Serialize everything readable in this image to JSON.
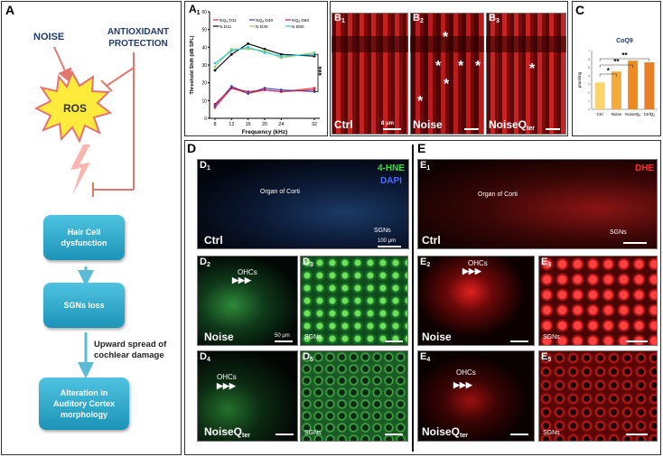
{
  "panelA": {
    "label": "A",
    "noise": "NOISE",
    "antioxidant": "ANTIOXIDANT\nPROTECTION",
    "ros": "ROS",
    "box1": "Hair Cell dysfunction",
    "box2": "SGNs loss",
    "spread": "Upward spread of cochlear damage",
    "box3": "Alteration in Auditory Cortex morphology"
  },
  "panelA1": {
    "label": "A",
    "sub": "1",
    "xlabel": "Frequency (kHz)",
    "ylabel": "Threshold Shift (dB SPL)",
    "legend": [
      "NQₐ D11",
      "NQₐ D30",
      "NQₐ D60",
      "N D11",
      "N D30",
      "N D60"
    ],
    "sig": "***",
    "colors": [
      "#e53935",
      "#3949ab",
      "#c2185b",
      "#000000",
      "#9ccc65",
      "#26c6da"
    ]
  },
  "chart_data": {
    "type": "line",
    "x": [
      8,
      12,
      16,
      20,
      24,
      32
    ],
    "xlabel": "Frequency (kHz)",
    "ylabel": "Threshold Shift (dB SPL)",
    "ylim": [
      0,
      60
    ],
    "yticks": [
      0,
      10,
      20,
      30,
      40,
      50,
      60
    ],
    "series": [
      {
        "name": "NQₐ D11",
        "values": [
          6,
          17,
          14,
          16,
          15,
          17
        ]
      },
      {
        "name": "NQₐ D30",
        "values": [
          7,
          18,
          14,
          17,
          16,
          15
        ]
      },
      {
        "name": "NQₐ D60",
        "values": [
          8,
          17,
          15,
          16,
          15,
          16
        ]
      },
      {
        "name": "N D11",
        "values": [
          27,
          36,
          42,
          39,
          36,
          35
        ]
      },
      {
        "name": "N D30",
        "values": [
          29,
          39,
          39,
          38,
          34,
          37
        ]
      },
      {
        "name": "N D60",
        "values": [
          31,
          38,
          40,
          37,
          35,
          36
        ]
      }
    ]
  },
  "panelB": {
    "label": "B",
    "b1": "B",
    "b2": "B",
    "b3": "B",
    "s1": "1",
    "s2": "2",
    "s3": "3",
    "ctrl": "Ctrl",
    "noise": "Noise",
    "noiseq": "NoiseQ",
    "ter": "ter",
    "scale": "8 μm",
    "star": "*"
  },
  "panelC": {
    "label": "C",
    "title": "CoQ9",
    "ylabel": "pmol/mg",
    "categories": [
      "Ctrl",
      "Noise",
      "NoiseQₐ",
      "CtrlQₐ"
    ],
    "values": [
      3.2,
      4.5,
      5.8,
      5.6
    ],
    "sig1": "*",
    "sig2": "**",
    "sig3": "**"
  },
  "panelD": {
    "label": "D",
    "d1": "D",
    "s1": "1",
    "hne": "4-HNE",
    "dapi": "DAPI",
    "organ": "Organ of Corti",
    "sgns": "SGNs",
    "scale": "100 μm",
    "ctrl": "Ctrl",
    "d2": "D",
    "s2": "2",
    "d3": "D",
    "s3": "3",
    "d4": "D",
    "s4": "4",
    "d5": "D",
    "s5": "5",
    "ohcs": "OHCs",
    "noise": "Noise",
    "scale50": "50 μm",
    "noiseq": "NoiseQ",
    "ter": "ter"
  },
  "panelE": {
    "label": "E",
    "e1": "E",
    "s1": "1",
    "dhe": "DHE",
    "organ": "Organ of Corti",
    "sgns": "SGNs",
    "ctrl": "Ctrl",
    "e2": "E",
    "s2": "2",
    "e3": "E",
    "s3": "3",
    "e4": "E",
    "s4": "4",
    "e5": "E",
    "s5": "5",
    "ohcs": "OHCs",
    "noise": "Noise",
    "noiseq": "NoiseQ",
    "ter": "ter"
  }
}
